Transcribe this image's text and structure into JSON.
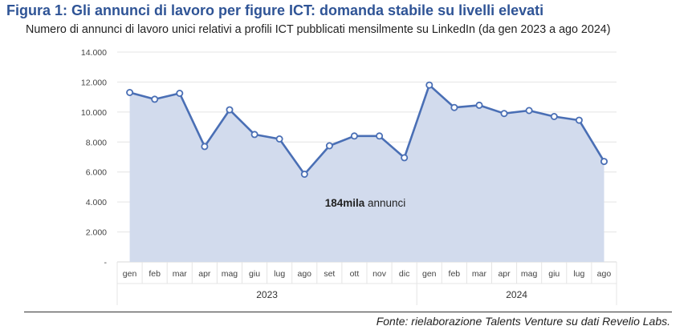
{
  "header": {
    "title": "Figura 1: Gli annunci di lavoro per figure ICT: domanda stabile su livelli elevati",
    "subtitle": "Numero di annunci di lavoro unici relativi a profili ICT pubblicati mensilmente su LinkedIn (da gen 2023 a ago 2024)"
  },
  "chart_data": {
    "type": "area",
    "title": "",
    "xlabel": "",
    "ylabel": "",
    "categories": [
      "gen",
      "feb",
      "mar",
      "apr",
      "mag",
      "giu",
      "lug",
      "ago",
      "set",
      "ott",
      "nov",
      "dic",
      "gen",
      "feb",
      "mar",
      "apr",
      "mag",
      "giu",
      "lug",
      "ago"
    ],
    "year_groups": [
      {
        "label": "2023",
        "count": 12
      },
      {
        "label": "2024",
        "count": 8
      }
    ],
    "series": [
      {
        "values": [
          11300,
          10850,
          11250,
          7700,
          10150,
          8500,
          8200,
          5850,
          7750,
          8400,
          8400,
          6950,
          11800,
          10300,
          10450,
          9900,
          10100,
          9700,
          9450,
          6700
        ]
      }
    ],
    "ylim": [
      0,
      14000
    ],
    "y_ticks": [
      {
        "value": 0,
        "label": "-"
      },
      {
        "value": 2000,
        "label": "2.000"
      },
      {
        "value": 4000,
        "label": "4.000"
      },
      {
        "value": 6000,
        "label": "6.000"
      },
      {
        "value": 8000,
        "label": "8.000"
      },
      {
        "value": 10000,
        "label": "10.000"
      },
      {
        "value": 12000,
        "label": "12.000"
      },
      {
        "value": 14000,
        "label": "14.000"
      }
    ],
    "grid": true,
    "legend": "none",
    "annotation": {
      "bold": "184mila",
      "text": " annunci"
    },
    "colors": {
      "line": "#4a6fb5",
      "fill": "#d2dbed",
      "marker_fill": "#ffffff",
      "grid": "#e4e4e4"
    }
  },
  "footer": {
    "source": "Fonte: rielaborazione Talents Venture su dati Revelio Labs."
  }
}
